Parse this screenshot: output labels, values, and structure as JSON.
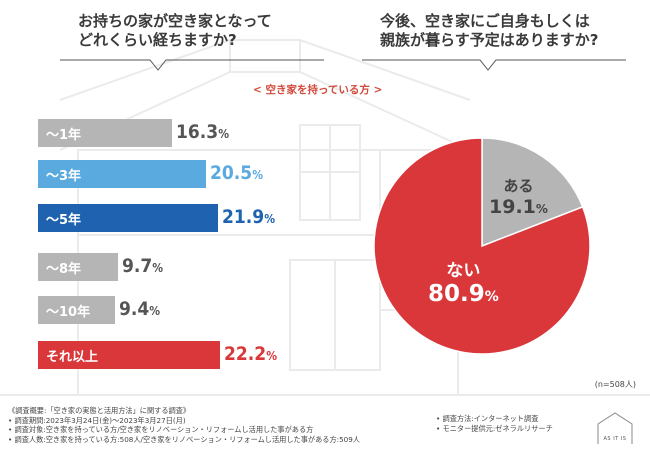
{
  "left_question": {
    "line1": "お持ちの家が空き家となって",
    "line2": "どれくらい経ちますか?"
  },
  "right_question": {
    "line1": "今後、空き家にご自身もしくは",
    "line2": "親族が暮らす予定はありますか?"
  },
  "subtitle": "< 空き家を持っている方 >",
  "sample_size": "(n=508人)",
  "chart_data": [
    {
      "type": "bar",
      "orientation": "horizontal",
      "title": "お持ちの家が空き家となってどれくらい経ちますか?",
      "categories": [
        "〜1年",
        "〜3年",
        "〜5年",
        "〜8年",
        "〜10年",
        "それ以上"
      ],
      "values": [
        16.3,
        20.5,
        21.9,
        9.7,
        9.4,
        22.2
      ],
      "value_labels": [
        {
          "num": "16.3",
          "unit": "%"
        },
        {
          "num": "20.5",
          "unit": "%"
        },
        {
          "num": "21.9",
          "unit": "%"
        },
        {
          "num": "9.7",
          "unit": "%"
        },
        {
          "num": "9.4",
          "unit": "%"
        },
        {
          "num": "22.2",
          "unit": "%"
        }
      ],
      "colors": [
        "#b5b5b5",
        "#5aaae0",
        "#1f63b0",
        "#b5b5b5",
        "#b5b5b5",
        "#d9373a"
      ],
      "value_colors": [
        "#555555",
        "#5aaae0",
        "#1f63b0",
        "#555555",
        "#555555",
        "#d9373a"
      ],
      "xlim": [
        0,
        22.2
      ]
    },
    {
      "type": "pie",
      "title": "今後、空き家にご自身もしくは親族が暮らす予定はありますか?",
      "labels": [
        "ある",
        "ない"
      ],
      "values": [
        19.1,
        80.9
      ],
      "value_labels": [
        {
          "num": "19.1",
          "unit": "%"
        },
        {
          "num": "80.9",
          "unit": "%"
        }
      ],
      "colors": [
        "#b5b5b5",
        "#d9373a"
      ]
    }
  ],
  "notes": {
    "title": "《調査概要:「空き家の実態と活用方法」に関する調査》",
    "period": "• 調査期間:2023年3月24日(金)〜2023年3月27日(月)",
    "target": "• 調査対象:空き家を持っている方/空き家をリノベーション・リフォームし活用した事がある方",
    "count": "• 調査人数:空き家を持っている方:508人/空き家をリノベーション・リフォームし活用した事がある方:509人",
    "method": "• 調査方法:インターネット調査",
    "provider": "• モニター提供元:ゼネラルリサーチ"
  },
  "logo": "AS IT IS"
}
